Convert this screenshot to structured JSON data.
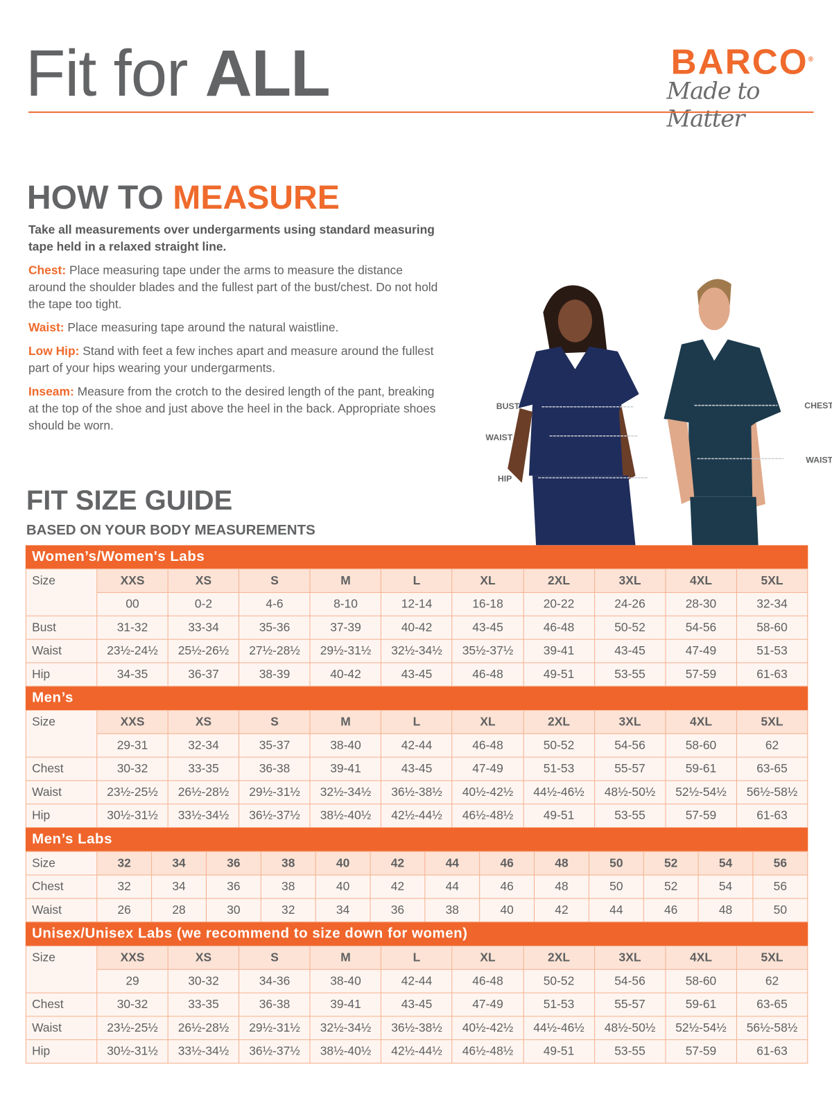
{
  "header": {
    "title_light": "Fit for ",
    "title_bold": "ALL",
    "logo_brand": "BARCO",
    "logo_tagline": "Made to Matter"
  },
  "measure": {
    "heading_gray": "HOW TO ",
    "heading_orange": "MEASURE",
    "lead": "Take all measurements over undergarments using standard measuring tape held in a relaxed straight line.",
    "items": [
      {
        "term": "Chest:",
        "text": "Place measuring tape under the arms to measure the distance around the shoulder blades and the fullest part of the bust/chest. Do not hold the tape too tight."
      },
      {
        "term": "Waist:",
        "text": "Place measuring tape around the natural waistline."
      },
      {
        "term": "Low Hip:",
        "text": "Stand with feet a few inches apart and measure around the fullest part of your hips wearing your undergarments."
      },
      {
        "term": "Inseam:",
        "text": "Measure from the crotch to the desired length of the pant, breaking at the top of the shoe and just above the heel in the back. Appropriate shoes should be worn."
      }
    ],
    "figure_labels": {
      "bust": "BUST",
      "waist_w": "WAIST",
      "hip": "HIP",
      "chest": "CHEST",
      "waist_m": "WAIST"
    }
  },
  "guide": {
    "title": "FIT SIZE GUIDE",
    "subtitle": "BASED ON YOUR BODY MEASUREMENTS"
  },
  "colors": {
    "accent": "#f0652b",
    "header_cell": "#fde3d5",
    "cell": "#fef5f0",
    "text": "#5f6062",
    "scrub_women": "#1f2d5c",
    "scrub_men": "#1c3a4c"
  },
  "tables": [
    {
      "title": "Women’s/Women's Labs",
      "size_label": "Size",
      "sizes": [
        "XXS",
        "XS",
        "S",
        "M",
        "L",
        "XL",
        "2XL",
        "3XL",
        "4XL",
        "5XL"
      ],
      "numeric": [
        "00",
        "0-2",
        "4-6",
        "8-10",
        "12-14",
        "16-18",
        "20-22",
        "24-26",
        "28-30",
        "32-34"
      ],
      "rows": [
        {
          "label": "Bust",
          "values": [
            "31-32",
            "33-34",
            "35-36",
            "37-39",
            "40-42",
            "43-45",
            "46-48",
            "50-52",
            "54-56",
            "58-60"
          ]
        },
        {
          "label": "Waist",
          "values": [
            "23½-24½",
            "25½-26½",
            "27½-28½",
            "29½-31½",
            "32½-34½",
            "35½-37½",
            "39-41",
            "43-45",
            "47-49",
            "51-53"
          ]
        },
        {
          "label": "Hip",
          "values": [
            "34-35",
            "36-37",
            "38-39",
            "40-42",
            "43-45",
            "46-48",
            "49-51",
            "53-55",
            "57-59",
            "61-63"
          ]
        }
      ]
    },
    {
      "title": "Men’s",
      "size_label": "Size",
      "sizes": [
        "XXS",
        "XS",
        "S",
        "M",
        "L",
        "XL",
        "2XL",
        "3XL",
        "4XL",
        "5XL"
      ],
      "numeric": [
        "29-31",
        "32-34",
        "35-37",
        "38-40",
        "42-44",
        "46-48",
        "50-52",
        "54-56",
        "58-60",
        "62"
      ],
      "rows": [
        {
          "label": "Chest",
          "values": [
            "30-32",
            "33-35",
            "36-38",
            "39-41",
            "43-45",
            "47-49",
            "51-53",
            "55-57",
            "59-61",
            "63-65"
          ]
        },
        {
          "label": "Waist",
          "values": [
            "23½-25½",
            "26½-28½",
            "29½-31½",
            "32½-34½",
            "36½-38½",
            "40½-42½",
            "44½-46½",
            "48½-50½",
            "52½-54½",
            "56½-58½"
          ]
        },
        {
          "label": "Hip",
          "values": [
            "30½-31½",
            "33½-34½",
            "36½-37½",
            "38½-40½",
            "42½-44½",
            "46½-48½",
            "49-51",
            "53-55",
            "57-59",
            "61-63"
          ]
        }
      ]
    },
    {
      "title": "Men’s Labs",
      "size_label": "Size",
      "sizes": [
        "32",
        "34",
        "36",
        "38",
        "40",
        "42",
        "44",
        "46",
        "48",
        "50",
        "52",
        "54",
        "56"
      ],
      "rows": [
        {
          "label": "Chest",
          "values": [
            "32",
            "34",
            "36",
            "38",
            "40",
            "42",
            "44",
            "46",
            "48",
            "50",
            "52",
            "54",
            "56"
          ]
        },
        {
          "label": "Waist",
          "values": [
            "26",
            "28",
            "30",
            "32",
            "34",
            "36",
            "38",
            "40",
            "42",
            "44",
            "46",
            "48",
            "50"
          ]
        }
      ]
    },
    {
      "title": "Unisex/Unisex Labs (we recommend to size down for women)",
      "size_label": "Size",
      "sizes": [
        "XXS",
        "XS",
        "S",
        "M",
        "L",
        "XL",
        "2XL",
        "3XL",
        "4XL",
        "5XL"
      ],
      "numeric": [
        "29",
        "30-32",
        "34-36",
        "38-40",
        "42-44",
        "46-48",
        "50-52",
        "54-56",
        "58-60",
        "62"
      ],
      "rows": [
        {
          "label": "Chest",
          "values": [
            "30-32",
            "33-35",
            "36-38",
            "39-41",
            "43-45",
            "47-49",
            "51-53",
            "55-57",
            "59-61",
            "63-65"
          ]
        },
        {
          "label": "Waist",
          "values": [
            "23½-25½",
            "26½-28½",
            "29½-31½",
            "32½-34½",
            "36½-38½",
            "40½-42½",
            "44½-46½",
            "48½-50½",
            "52½-54½",
            "56½-58½"
          ]
        },
        {
          "label": "Hip",
          "values": [
            "30½-31½",
            "33½-34½",
            "36½-37½",
            "38½-40½",
            "42½-44½",
            "46½-48½",
            "49-51",
            "53-55",
            "57-59",
            "61-63"
          ]
        }
      ]
    }
  ]
}
